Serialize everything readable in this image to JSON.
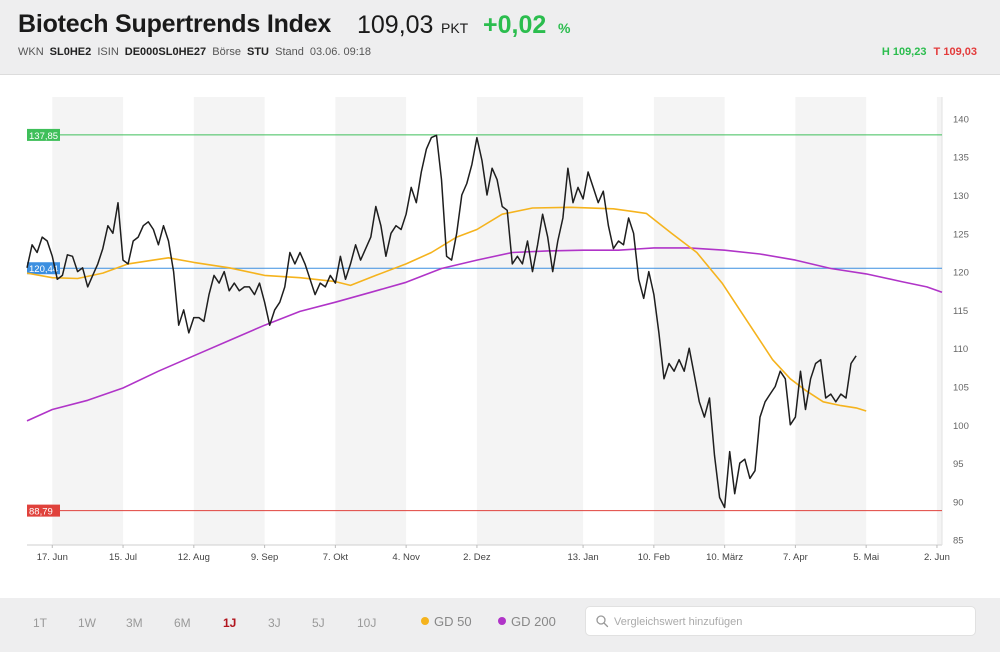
{
  "header": {
    "title": "Biotech Supertrends Index",
    "price": "109,03",
    "unit": "PKT",
    "change": "+0,02",
    "change_unit": "%",
    "meta": {
      "wkn_label": "WKN",
      "wkn": "SL0HE2",
      "isin_label": "ISIN",
      "isin": "DE000SL0HE27",
      "exchange_label": "Börse",
      "exchange": "STU",
      "stand_label": "Stand",
      "stand": "03.06. 09:18"
    },
    "high_label": "H",
    "high": "109,23",
    "low_label": "T",
    "low": "109,03"
  },
  "chart_data": {
    "type": "line",
    "x_tick_labels": [
      "17. Jun",
      "15. Jul",
      "12. Aug",
      "9. Sep",
      "7. Okt",
      "4. Nov",
      "2. Dez",
      "13. Jan",
      "10. Feb",
      "10. März",
      "7. Apr",
      "5. Mai",
      "2. Jun"
    ],
    "x_ticks_day": [
      0,
      28,
      56,
      84,
      112,
      140,
      168,
      210,
      238,
      266,
      294,
      322,
      350
    ],
    "x_range_day": [
      -10,
      352
    ],
    "y_ticks": [
      85,
      90,
      95,
      100,
      105,
      110,
      115,
      120,
      125,
      130,
      135,
      140
    ],
    "ylim": [
      84.3,
      142.8
    ],
    "reference_lines": [
      {
        "value": 137.85,
        "label": "137,85",
        "color": "#3fbf5a"
      },
      {
        "value": 120.44,
        "label": "120,44",
        "color": "#3c8fe0"
      },
      {
        "value": 88.79,
        "label": "88,79",
        "color": "#e0423c"
      }
    ],
    "series": [
      {
        "name": "",
        "color": "#1e1e1e",
        "values": [
          [
            -10,
            120.5
          ],
          [
            -8,
            123.5
          ],
          [
            -6,
            122.5
          ],
          [
            -4,
            124.5
          ],
          [
            -2,
            124
          ],
          [
            0,
            122
          ],
          [
            2,
            119
          ],
          [
            4,
            119.5
          ],
          [
            6,
            122.2
          ],
          [
            8,
            122
          ],
          [
            10,
            120
          ],
          [
            12,
            120.5
          ],
          [
            14,
            118
          ],
          [
            16,
            119.5
          ],
          [
            18,
            121
          ],
          [
            20,
            123
          ],
          [
            22,
            126
          ],
          [
            24,
            125
          ],
          [
            26,
            129
          ],
          [
            28,
            121.5
          ],
          [
            30,
            121
          ],
          [
            32,
            124
          ],
          [
            34,
            124.5
          ],
          [
            36,
            126
          ],
          [
            38,
            126.5
          ],
          [
            40,
            125.5
          ],
          [
            42,
            123.5
          ],
          [
            44,
            126
          ],
          [
            46,
            124
          ],
          [
            48,
            120
          ],
          [
            50,
            113
          ],
          [
            52,
            115
          ],
          [
            54,
            112
          ],
          [
            56,
            114
          ],
          [
            58,
            114
          ],
          [
            60,
            113.5
          ],
          [
            62,
            117
          ],
          [
            64,
            119.5
          ],
          [
            66,
            118.5
          ],
          [
            68,
            120
          ],
          [
            70,
            117.5
          ],
          [
            72,
            118.5
          ],
          [
            74,
            117.5
          ],
          [
            76,
            118
          ],
          [
            78,
            118
          ],
          [
            80,
            117
          ],
          [
            82,
            118.5
          ],
          [
            84,
            116
          ],
          [
            86,
            113
          ],
          [
            88,
            115
          ],
          [
            90,
            116
          ],
          [
            92,
            118
          ],
          [
            94,
            122.5
          ],
          [
            96,
            121
          ],
          [
            98,
            122.5
          ],
          [
            100,
            121
          ],
          [
            102,
            119
          ],
          [
            104,
            117
          ],
          [
            106,
            118.5
          ],
          [
            108,
            118
          ],
          [
            110,
            119.5
          ],
          [
            112,
            118.5
          ],
          [
            114,
            122
          ],
          [
            116,
            119
          ],
          [
            118,
            121
          ],
          [
            120,
            123.5
          ],
          [
            122,
            121.5
          ],
          [
            124,
            123
          ],
          [
            126,
            124.5
          ],
          [
            128,
            128.5
          ],
          [
            130,
            126
          ],
          [
            132,
            122
          ],
          [
            134,
            125
          ],
          [
            136,
            126
          ],
          [
            138,
            125.5
          ],
          [
            140,
            127.5
          ],
          [
            142,
            131
          ],
          [
            144,
            129
          ],
          [
            146,
            133
          ],
          [
            148,
            136
          ],
          [
            150,
            137.5
          ],
          [
            152,
            137.8
          ],
          [
            154,
            132
          ],
          [
            156,
            122
          ],
          [
            158,
            121.5
          ],
          [
            160,
            125
          ],
          [
            162,
            130
          ],
          [
            164,
            131.5
          ],
          [
            166,
            134
          ],
          [
            168,
            137.5
          ],
          [
            170,
            134.5
          ],
          [
            172,
            130
          ],
          [
            174,
            133.5
          ],
          [
            176,
            132
          ],
          [
            178,
            128.5
          ],
          [
            180,
            128
          ],
          [
            182,
            121
          ],
          [
            184,
            122
          ],
          [
            186,
            121
          ],
          [
            188,
            124
          ],
          [
            190,
            120
          ],
          [
            192,
            123.5
          ],
          [
            194,
            127.5
          ],
          [
            196,
            124.5
          ],
          [
            198,
            120
          ],
          [
            200,
            124
          ],
          [
            202,
            127
          ],
          [
            204,
            133.5
          ],
          [
            206,
            129
          ],
          [
            208,
            131
          ],
          [
            210,
            129.5
          ],
          [
            212,
            133
          ],
          [
            214,
            131
          ],
          [
            216,
            129
          ],
          [
            218,
            130.5
          ],
          [
            220,
            126
          ],
          [
            222,
            123
          ],
          [
            224,
            124
          ],
          [
            226,
            123.5
          ],
          [
            228,
            127
          ],
          [
            230,
            125
          ],
          [
            232,
            119
          ],
          [
            234,
            116.5
          ],
          [
            236,
            120
          ],
          [
            238,
            117
          ],
          [
            240,
            112
          ],
          [
            242,
            106
          ],
          [
            244,
            108
          ],
          [
            246,
            107
          ],
          [
            248,
            108.5
          ],
          [
            250,
            107
          ],
          [
            252,
            110
          ],
          [
            254,
            106.5
          ],
          [
            256,
            103
          ],
          [
            258,
            101
          ],
          [
            260,
            103.5
          ],
          [
            262,
            96
          ],
          [
            264,
            90.5
          ],
          [
            266,
            89.2
          ],
          [
            268,
            96.5
          ],
          [
            270,
            91
          ],
          [
            272,
            95
          ],
          [
            274,
            95.5
          ],
          [
            276,
            93
          ],
          [
            278,
            94
          ],
          [
            280,
            101
          ],
          [
            282,
            103
          ],
          [
            284,
            104
          ],
          [
            286,
            105
          ],
          [
            288,
            107
          ],
          [
            290,
            106
          ],
          [
            292,
            100
          ],
          [
            294,
            101
          ],
          [
            296,
            107
          ],
          [
            298,
            102
          ],
          [
            300,
            106
          ],
          [
            302,
            108
          ],
          [
            304,
            108.5
          ],
          [
            306,
            103.5
          ],
          [
            308,
            104
          ],
          [
            310,
            103
          ],
          [
            312,
            104
          ],
          [
            314,
            103.5
          ],
          [
            316,
            108
          ],
          [
            318,
            109
          ]
        ]
      },
      {
        "name": "GD 50",
        "color": "#f5b31d",
        "values": [
          [
            -10,
            119.8
          ],
          [
            0,
            119.2
          ],
          [
            10,
            119.1
          ],
          [
            20,
            119.8
          ],
          [
            30,
            121
          ],
          [
            40,
            121.5
          ],
          [
            46,
            121.8
          ],
          [
            56,
            121.2
          ],
          [
            70,
            120.5
          ],
          [
            84,
            119.5
          ],
          [
            98,
            119.2
          ],
          [
            112,
            118.7
          ],
          [
            118,
            118.2
          ],
          [
            128,
            119.5
          ],
          [
            140,
            121
          ],
          [
            150,
            122.5
          ],
          [
            160,
            124.5
          ],
          [
            168,
            125.5
          ],
          [
            178,
            127.5
          ],
          [
            190,
            128.3
          ],
          [
            205,
            128.4
          ],
          [
            222,
            128.2
          ],
          [
            235,
            127.6
          ],
          [
            245,
            125
          ],
          [
            255,
            122.5
          ],
          [
            265,
            118.5
          ],
          [
            270,
            116
          ],
          [
            278,
            112
          ],
          [
            285,
            108.5
          ],
          [
            292,
            106
          ],
          [
            298,
            104.5
          ],
          [
            305,
            103
          ],
          [
            312,
            102.5
          ],
          [
            318,
            102.2
          ],
          [
            322,
            101.8
          ]
        ]
      },
      {
        "name": "GD 200",
        "color": "#b034c8",
        "values": [
          [
            -10,
            100.5
          ],
          [
            0,
            102
          ],
          [
            14,
            103.2
          ],
          [
            28,
            104.8
          ],
          [
            42,
            107
          ],
          [
            56,
            109
          ],
          [
            70,
            111
          ],
          [
            84,
            113
          ],
          [
            98,
            114.8
          ],
          [
            112,
            116
          ],
          [
            126,
            117.3
          ],
          [
            140,
            118.6
          ],
          [
            154,
            120.4
          ],
          [
            168,
            121.5
          ],
          [
            182,
            122.5
          ],
          [
            196,
            122.7
          ],
          [
            210,
            122.8
          ],
          [
            224,
            122.8
          ],
          [
            238,
            123.1
          ],
          [
            252,
            123.1
          ],
          [
            266,
            122.8
          ],
          [
            280,
            122.3
          ],
          [
            294,
            121.5
          ],
          [
            308,
            120.4
          ],
          [
            322,
            119.7
          ],
          [
            336,
            118.7
          ],
          [
            346,
            118
          ],
          [
            352,
            117.3
          ]
        ]
      }
    ],
    "grid": "alternating vertical bands",
    "legend": "bottom"
  },
  "footer": {
    "ranges": [
      {
        "label": "1T",
        "active": false
      },
      {
        "label": "1W",
        "active": false
      },
      {
        "label": "3M",
        "active": false
      },
      {
        "label": "6M",
        "active": false
      },
      {
        "label": "1J",
        "active": true
      },
      {
        "label": "3J",
        "active": false
      },
      {
        "label": "5J",
        "active": false
      },
      {
        "label": "10J",
        "active": false
      }
    ],
    "legend": [
      {
        "label": "GD 50",
        "color": "#f5b31d"
      },
      {
        "label": "GD 200",
        "color": "#b034c8"
      }
    ],
    "search_placeholder": "Vergleichswert hinzufügen",
    "search_icon": "search-icon"
  }
}
